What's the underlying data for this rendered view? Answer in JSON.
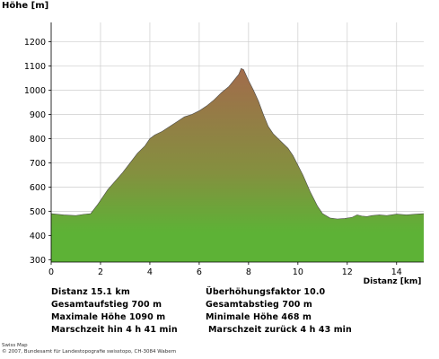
{
  "chart_data": {
    "type": "area",
    "ylabel": "Höhe [m]",
    "xlabel": "Distanz [km]",
    "xlim": [
      0,
      15.1
    ],
    "ylim": [
      290,
      1280
    ],
    "x_ticks": [
      0,
      2,
      4,
      6,
      8,
      10,
      12,
      14
    ],
    "y_ticks": [
      300,
      400,
      500,
      600,
      700,
      800,
      900,
      1000,
      1100,
      1200
    ],
    "grid": true,
    "series": [
      {
        "x": [
          0,
          0.5,
          1.0,
          1.3,
          1.6,
          1.9,
          2.1,
          2.3,
          2.6,
          2.9,
          3.2,
          3.5,
          3.8,
          4.0,
          4.2,
          4.5,
          4.8,
          5.1,
          5.4,
          5.7,
          6.0,
          6.3,
          6.6,
          6.9,
          7.2,
          7.4,
          7.6,
          7.7,
          7.8,
          8.0,
          8.2,
          8.4,
          8.6,
          8.8,
          9.0,
          9.2,
          9.4,
          9.6,
          9.8,
          10.0,
          10.2,
          10.5,
          10.8,
          11.0,
          11.3,
          11.6,
          11.9,
          12.2,
          12.4,
          12.6,
          12.8,
          13.0,
          13.3,
          13.6,
          14.0,
          14.4,
          14.8,
          15.1
        ],
        "values": [
          490,
          485,
          482,
          487,
          490,
          530,
          560,
          590,
          625,
          660,
          700,
          740,
          770,
          800,
          815,
          830,
          850,
          870,
          890,
          900,
          915,
          935,
          960,
          990,
          1015,
          1040,
          1065,
          1090,
          1085,
          1040,
          1000,
          955,
          900,
          850,
          820,
          800,
          780,
          760,
          730,
          690,
          650,
          580,
          520,
          490,
          472,
          468,
          470,
          475,
          485,
          480,
          478,
          482,
          485,
          482,
          488,
          485,
          488,
          490
        ]
      }
    ]
  },
  "stats": {
    "distanz": "Distanz 15.1 km",
    "gesamtaufstieg": "Gesamtaufstieg  700 m",
    "maximale_hoehe": "Maximale Höhe  1090 m",
    "marschzeit_hin": "Marschzeit hin  4 h 41 min",
    "ueberhoehung": "Überhöhungsfaktor 10.0",
    "gesamtabstieg": "Gesamtabstieg  700 m",
    "minimale_hoehe": "Minimale Höhe  468 m",
    "marschzeit_zurueck": "Marschzeit zurück  4 h 43 min"
  },
  "credits": {
    "line1": "Swiss Map",
    "line2": "© 2007, Bundesamt für Landestopografie swisstopo, CH-3084 Wabern"
  },
  "colors": {
    "low": "#5db236",
    "high": "#a36a4c",
    "grid": "#cccccc",
    "background": "#ffffff"
  }
}
